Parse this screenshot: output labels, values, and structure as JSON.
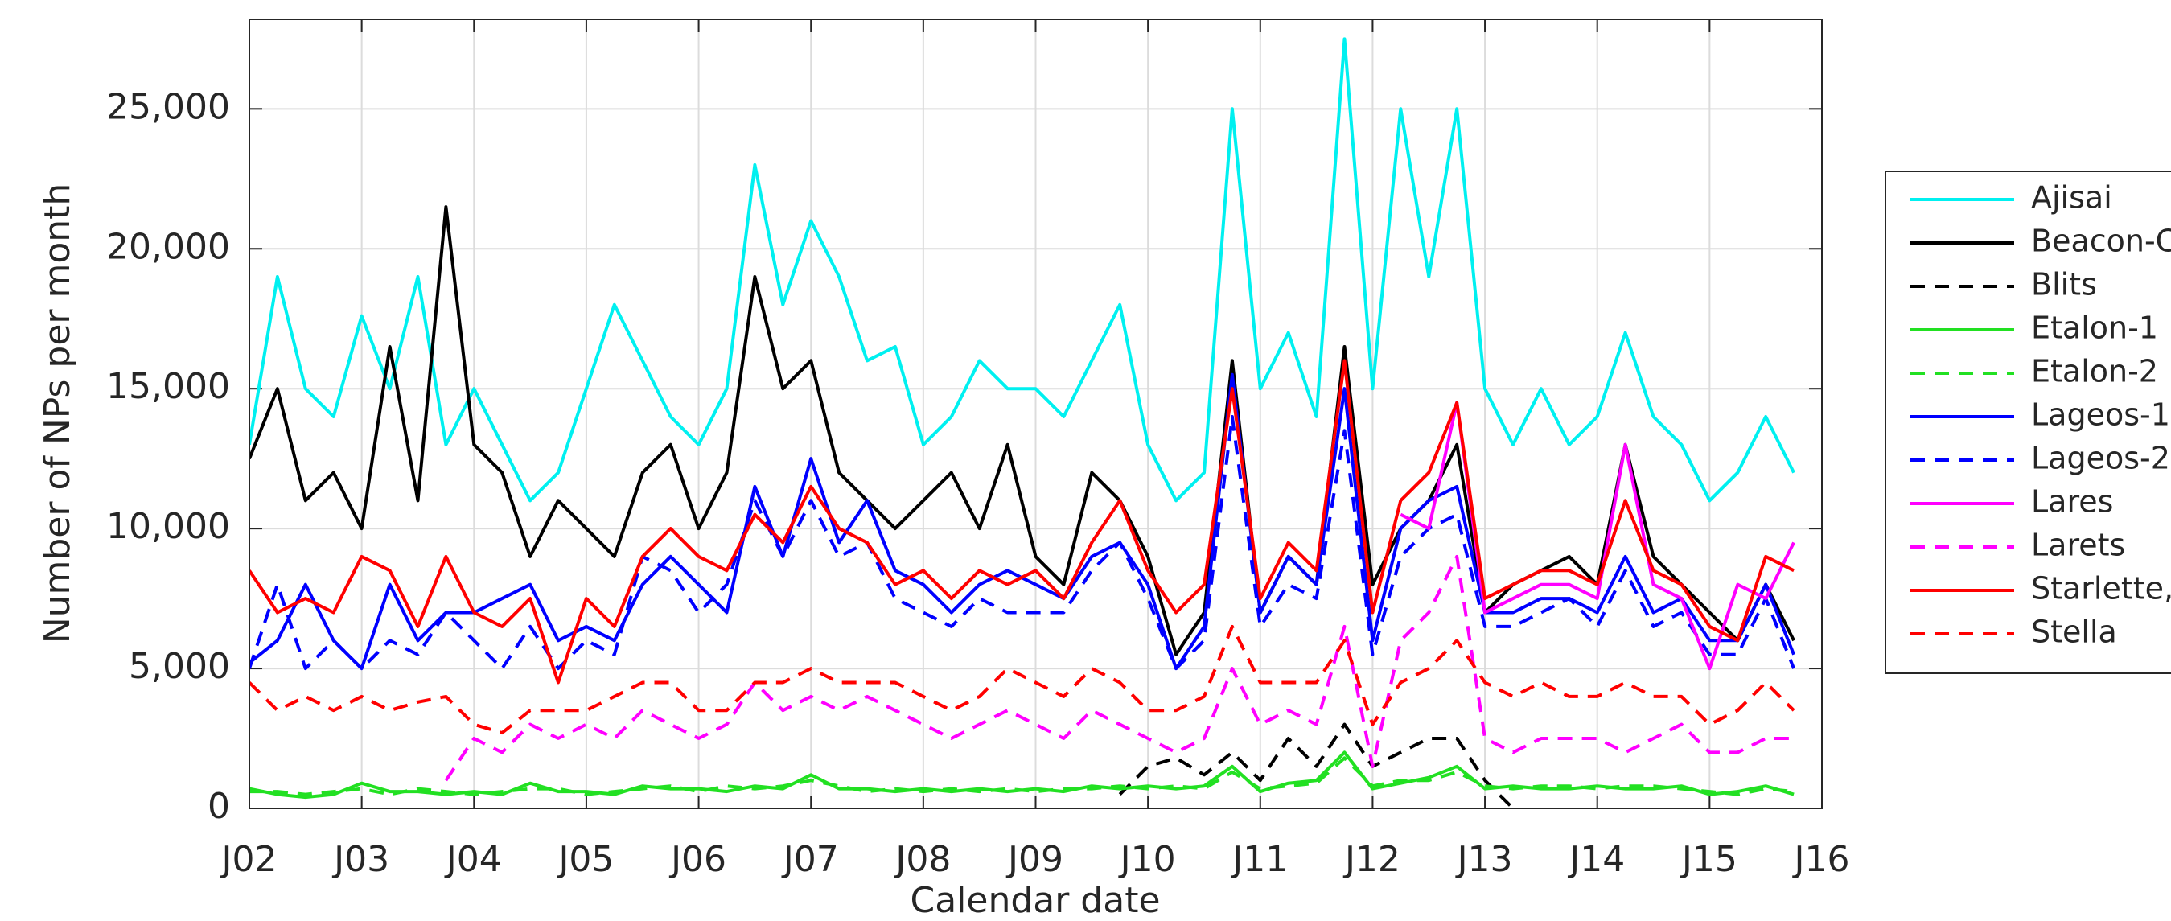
{
  "chart_data": {
    "type": "line",
    "x_label": "Calendar date",
    "y_label": "Number of NPs per month",
    "x": [
      2002,
      2002.25,
      2002.5,
      2002.75,
      2003,
      2003.25,
      2003.5,
      2003.75,
      2004,
      2004.25,
      2004.5,
      2004.75,
      2005,
      2005.25,
      2005.5,
      2005.75,
      2006,
      2006.25,
      2006.5,
      2006.75,
      2007,
      2007.25,
      2007.5,
      2007.75,
      2008,
      2008.25,
      2008.5,
      2008.75,
      2009,
      2009.25,
      2009.5,
      2009.75,
      2010,
      2010.25,
      2010.5,
      2010.75,
      2011,
      2011.25,
      2011.5,
      2011.75,
      2012,
      2012.25,
      2012.5,
      2012.75,
      2013,
      2013.25,
      2013.5,
      2013.75,
      2014,
      2014.25,
      2014.5,
      2014.75,
      2015,
      2015.25,
      2015.5,
      2015.75
    ],
    "xlim": [
      2002,
      2016
    ],
    "xticks": [
      {
        "value": 2002,
        "label": "J02"
      },
      {
        "value": 2003,
        "label": "J03"
      },
      {
        "value": 2004,
        "label": "J04"
      },
      {
        "value": 2005,
        "label": "J05"
      },
      {
        "value": 2006,
        "label": "J06"
      },
      {
        "value": 2007,
        "label": "J07"
      },
      {
        "value": 2008,
        "label": "J08"
      },
      {
        "value": 2009,
        "label": "J09"
      },
      {
        "value": 2010,
        "label": "J10"
      },
      {
        "value": 2011,
        "label": "J11"
      },
      {
        "value": 2012,
        "label": "J12"
      },
      {
        "value": 2013,
        "label": "J13"
      },
      {
        "value": 2014,
        "label": "J14"
      },
      {
        "value": 2015,
        "label": "J15"
      },
      {
        "value": 2016,
        "label": "J16"
      }
    ],
    "ylim": [
      0,
      28200
    ],
    "yticks": [
      0,
      {
        "value": 5000,
        "label": "5,000"
      },
      {
        "value": 10000,
        "label": "10,000"
      },
      {
        "value": 15000,
        "label": "15,000"
      },
      {
        "value": 20000,
        "label": "20,000"
      },
      {
        "value": 25000,
        "label": "25,000"
      }
    ],
    "grid": true,
    "legend": "right",
    "series": [
      {
        "name": "Ajisai",
        "color": "#00f0f0",
        "linestyle": "solid",
        "values": [
          13000,
          19000,
          15000,
          14000,
          17600,
          15000,
          19000,
          13000,
          15000,
          13000,
          11000,
          12000,
          15000,
          18000,
          16000,
          14000,
          13000,
          15000,
          23000,
          18000,
          21000,
          19000,
          16000,
          16500,
          13000,
          14000,
          16000,
          15000,
          15000,
          14000,
          16000,
          18000,
          13000,
          11000,
          12000,
          25000,
          15000,
          17000,
          14000,
          27500,
          15000,
          25000,
          19000,
          25000,
          15000,
          13000,
          15000,
          13000,
          14000,
          17000,
          14000,
          13000,
          11000,
          12000,
          14000,
          12000
        ]
      },
      {
        "name": "Beacon-C",
        "color": "#000000",
        "linestyle": "solid",
        "values": [
          12500,
          15000,
          11000,
          12000,
          10000,
          16500,
          11000,
          21500,
          13000,
          12000,
          9000,
          11000,
          10000,
          9000,
          12000,
          13000,
          10000,
          12000,
          19000,
          15000,
          16000,
          12000,
          11000,
          10000,
          11000,
          12000,
          10000,
          13000,
          9000,
          8000,
          12000,
          11000,
          9000,
          5500,
          7000,
          16000,
          7000,
          9000,
          8000,
          16500,
          8000,
          10000,
          11000,
          13000,
          7000,
          8000,
          8500,
          9000,
          8000,
          13000,
          9000,
          8000,
          7000,
          6000,
          8000,
          6000
        ]
      },
      {
        "name": "Blits",
        "color": "#000000",
        "linestyle": "dashed",
        "values": [
          null,
          null,
          null,
          null,
          null,
          null,
          null,
          null,
          null,
          null,
          null,
          null,
          null,
          null,
          null,
          null,
          null,
          null,
          null,
          null,
          null,
          null,
          null,
          null,
          null,
          null,
          null,
          null,
          null,
          null,
          null,
          500,
          1500,
          1800,
          1200,
          2000,
          1000,
          2500,
          1500,
          3000,
          1500,
          2000,
          2500,
          2500,
          1000,
          0,
          null,
          null,
          null,
          null,
          null,
          null,
          null,
          null,
          null,
          null
        ]
      },
      {
        "name": "Etalon-1",
        "color": "#22e022",
        "linestyle": "solid",
        "values": [
          700,
          500,
          400,
          500,
          900,
          600,
          600,
          500,
          600,
          500,
          900,
          600,
          600,
          500,
          800,
          700,
          700,
          600,
          800,
          700,
          1200,
          700,
          700,
          600,
          700,
          600,
          700,
          600,
          700,
          600,
          800,
          700,
          800,
          700,
          800,
          1500,
          600,
          900,
          1000,
          2000,
          700,
          900,
          1100,
          1500,
          700,
          800,
          700,
          700,
          800,
          700,
          700,
          800,
          500,
          600,
          800,
          500
        ]
      },
      {
        "name": "Etalon-2",
        "color": "#22e022",
        "linestyle": "dashed",
        "values": [
          600,
          600,
          500,
          600,
          700,
          500,
          700,
          600,
          500,
          600,
          700,
          700,
          500,
          600,
          700,
          800,
          600,
          800,
          700,
          800,
          1000,
          800,
          600,
          700,
          600,
          700,
          600,
          700,
          600,
          700,
          700,
          800,
          700,
          800,
          700,
          1300,
          700,
          800,
          900,
          1800,
          800,
          1000,
          1000,
          1300,
          800,
          700,
          800,
          800,
          700,
          800,
          800,
          700,
          600,
          500,
          700,
          600
        ]
      },
      {
        "name": "Lageos-1",
        "color": "#0000ff",
        "linestyle": "solid",
        "values": [
          5200,
          6000,
          8000,
          6000,
          5000,
          8000,
          6000,
          7000,
          7000,
          7500,
          8000,
          6000,
          6500,
          6000,
          8000,
          9000,
          8000,
          7000,
          11500,
          9000,
          12500,
          9500,
          11000,
          8500,
          8000,
          7000,
          8000,
          8500,
          8000,
          7500,
          9000,
          9500,
          8000,
          5000,
          6500,
          15500,
          7000,
          9000,
          8000,
          15000,
          6000,
          10000,
          11000,
          11500,
          7000,
          7000,
          7500,
          7500,
          7000,
          9000,
          7000,
          7500,
          6000,
          6000,
          8000,
          5500
        ]
      },
      {
        "name": "Lageos-2",
        "color": "#0000ff",
        "linestyle": "dashed",
        "values": [
          5000,
          8000,
          5000,
          6000,
          5000,
          6000,
          5500,
          7000,
          6000,
          5000,
          6500,
          5000,
          6000,
          5500,
          9000,
          8500,
          7000,
          8000,
          11000,
          9000,
          11000,
          9000,
          9500,
          7500,
          7000,
          6500,
          7500,
          7000,
          7000,
          7000,
          8500,
          9500,
          7500,
          5000,
          6000,
          14000,
          6500,
          8000,
          7500,
          13500,
          5500,
          9000,
          10000,
          10500,
          6500,
          6500,
          7000,
          7500,
          6500,
          8500,
          6500,
          7000,
          5500,
          5500,
          7500,
          5000
        ]
      },
      {
        "name": "Lares",
        "color": "#ff00ff",
        "linestyle": "solid",
        "values": [
          null,
          null,
          null,
          null,
          null,
          null,
          null,
          null,
          null,
          null,
          null,
          null,
          null,
          null,
          null,
          null,
          null,
          null,
          null,
          null,
          null,
          null,
          null,
          null,
          null,
          null,
          null,
          null,
          null,
          null,
          null,
          null,
          null,
          null,
          null,
          null,
          null,
          null,
          null,
          null,
          null,
          10500,
          10000,
          14500,
          7000,
          7500,
          8000,
          8000,
          7500,
          13000,
          8000,
          7500,
          5000,
          8000,
          7500,
          9500
        ]
      },
      {
        "name": "Larets",
        "color": "#ff00ff",
        "linestyle": "dashed",
        "values": [
          null,
          null,
          null,
          null,
          null,
          null,
          null,
          1000,
          2500,
          2000,
          3000,
          2500,
          3000,
          2500,
          3500,
          3000,
          2500,
          3000,
          4500,
          3500,
          4000,
          3500,
          4000,
          3500,
          3000,
          2500,
          3000,
          3500,
          3000,
          2500,
          3500,
          3000,
          2500,
          2000,
          2500,
          5000,
          3000,
          3500,
          3000,
          6500,
          1500,
          6000,
          7000,
          9000,
          2500,
          2000,
          2500,
          2500,
          2500,
          2000,
          2500,
          3000,
          2000,
          2000,
          2500,
          2500
        ]
      },
      {
        "name": "Starlette,",
        "color": "#ff0000",
        "linestyle": "solid",
        "values": [
          8500,
          7000,
          7500,
          7000,
          9000,
          8500,
          6500,
          9000,
          7000,
          6500,
          7500,
          4500,
          7500,
          6500,
          9000,
          10000,
          9000,
          8500,
          10500,
          9500,
          11500,
          10000,
          9500,
          8000,
          8500,
          7500,
          8500,
          8000,
          8500,
          7500,
          9500,
          11000,
          8500,
          7000,
          8000,
          15000,
          7500,
          9500,
          8500,
          16000,
          7000,
          11000,
          12000,
          14500,
          7500,
          8000,
          8500,
          8500,
          8000,
          11000,
          8500,
          8000,
          6500,
          6000,
          9000,
          8500
        ]
      },
      {
        "name": "Stella",
        "color": "#ff0000",
        "linestyle": "dashed",
        "values": [
          4500,
          3500,
          4000,
          3500,
          4000,
          3500,
          3800,
          4000,
          3000,
          2700,
          3500,
          3500,
          3500,
          4000,
          4500,
          4500,
          3500,
          3500,
          4500,
          4500,
          5000,
          4500,
          4500,
          4500,
          4000,
          3500,
          4000,
          5000,
          4500,
          4000,
          5000,
          4500,
          3500,
          3500,
          4000,
          6500,
          4500,
          4500,
          4500,
          6000,
          3000,
          4500,
          5000,
          6000,
          4500,
          4000,
          4500,
          4000,
          4000,
          4500,
          4000,
          4000,
          3000,
          3500,
          4500,
          3500
        ]
      }
    ]
  }
}
